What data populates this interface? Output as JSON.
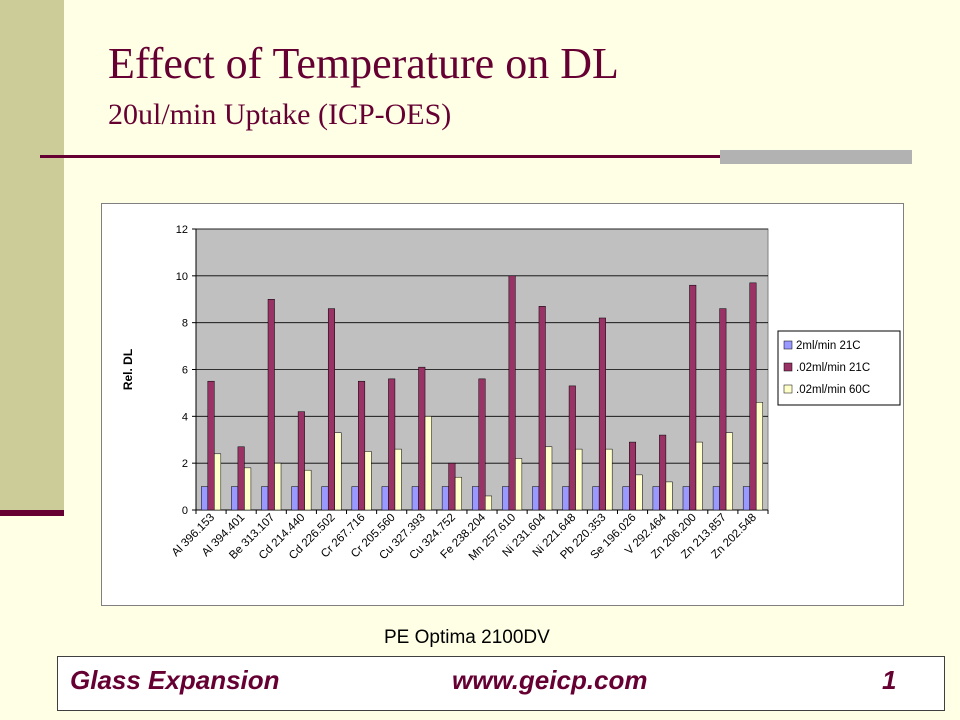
{
  "slide": {
    "title": "Effect of Temperature on DL",
    "subtitle": "20ul/min Uptake (ICP-OES)",
    "caption": "PE Optima 2100DV",
    "footer": {
      "company": "Glass Expansion",
      "url": "www.geicp.com",
      "page": "1"
    },
    "colors": {
      "background": "#FFFFE5",
      "accent": "#660033",
      "sidebar": "#CCCC99",
      "plot_area": "#C0C0C0"
    }
  },
  "chart_data": {
    "type": "bar",
    "ylabel": "Rel. DL",
    "ylim": [
      0,
      12
    ],
    "yticks": [
      "0",
      "2",
      "4",
      "6",
      "8",
      "10",
      "12"
    ],
    "legend_position": "right",
    "categories": [
      "Al 396.153",
      "Al 394.401",
      "Be 313.107",
      "Cd 214.440",
      "Cd 226.502",
      "Cr 267.716",
      "Cr 205.560",
      "Cu 327.393",
      "Cu 324.752",
      "Fe 238.204",
      "Mn 257.610",
      "Ni 231.604",
      "Ni 221.648",
      "Pb 220.353",
      "Se 196.026",
      "V 292.464",
      "Zn 206.200",
      "Zn 213.857",
      "Zn 202.548"
    ],
    "series": [
      {
        "name": "2ml/min 21C",
        "color": "#9999FF",
        "values": [
          1,
          1,
          1,
          1,
          1,
          1,
          1,
          1,
          1,
          1,
          1,
          1,
          1,
          1,
          1,
          1,
          1,
          1,
          1
        ]
      },
      {
        "name": ".02ml/min 21C",
        "color": "#993366",
        "values": [
          5.5,
          2.7,
          9.0,
          4.2,
          8.6,
          5.5,
          5.6,
          6.1,
          2.0,
          5.6,
          10.0,
          8.7,
          5.3,
          8.2,
          2.9,
          3.2,
          9.6,
          8.6,
          9.7
        ]
      },
      {
        "name": ".02ml/min 60C",
        "color": "#FFFFCC",
        "values": [
          2.4,
          1.8,
          2.0,
          1.7,
          3.3,
          2.5,
          2.6,
          4.0,
          1.4,
          0.6,
          2.2,
          2.7,
          2.6,
          2.6,
          1.5,
          1.2,
          2.9,
          3.3,
          4.6
        ]
      }
    ]
  }
}
